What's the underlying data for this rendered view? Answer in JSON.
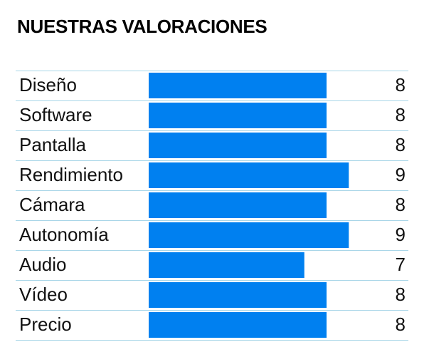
{
  "title": "NUESTRAS VALORACIONES",
  "colors": {
    "bar": "#0080F0",
    "rule": "#A9D6E8",
    "text": "#111111"
  },
  "chart_data": {
    "type": "bar",
    "orientation": "horizontal",
    "title": "NUESTRAS VALORACIONES",
    "categories": [
      "Diseño",
      "Software",
      "Pantalla",
      "Rendimiento",
      "Cámara",
      "Autonomía",
      "Audio",
      "Vídeo",
      "Precio"
    ],
    "values": [
      8,
      8,
      8,
      9,
      8,
      9,
      7,
      8,
      8
    ],
    "xlim": [
      0,
      10
    ],
    "grid": false,
    "legend": "none",
    "data_labels": "right"
  }
}
